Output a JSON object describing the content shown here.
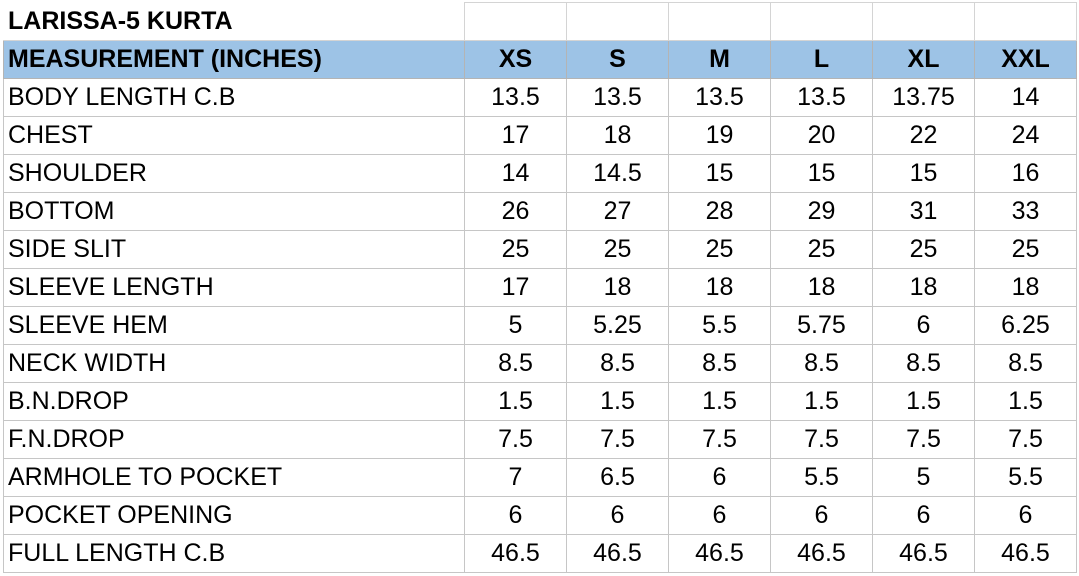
{
  "title": "LARISSA-5 KURTA",
  "header": {
    "label": "MEASUREMENT (INCHES)",
    "sizes": [
      "XS",
      "S",
      "M",
      "L",
      "XL",
      "XXL"
    ]
  },
  "rows": [
    {
      "label": "BODY LENGTH C.B",
      "values": [
        "13.5",
        "13.5",
        "13.5",
        "13.5",
        "13.75",
        "14"
      ]
    },
    {
      "label": "CHEST",
      "values": [
        "17",
        "18",
        "19",
        "20",
        "22",
        "24"
      ]
    },
    {
      "label": "SHOULDER",
      "values": [
        "14",
        "14.5",
        "15",
        "15",
        "15",
        "16"
      ]
    },
    {
      "label": "BOTTOM",
      "values": [
        "26",
        "27",
        "28",
        "29",
        "31",
        "33"
      ]
    },
    {
      "label": "SIDE SLIT",
      "values": [
        "25",
        "25",
        "25",
        "25",
        "25",
        "25"
      ]
    },
    {
      "label": "SLEEVE LENGTH",
      "values": [
        "17",
        "18",
        "18",
        "18",
        "18",
        "18"
      ]
    },
    {
      "label": "SLEEVE HEM",
      "values": [
        "5",
        "5.25",
        "5.5",
        "5.75",
        "6",
        "6.25"
      ]
    },
    {
      "label": "NECK WIDTH",
      "values": [
        "8.5",
        "8.5",
        "8.5",
        "8.5",
        "8.5",
        "8.5"
      ]
    },
    {
      "label": "B.N.DROP",
      "values": [
        "1.5",
        "1.5",
        "1.5",
        "1.5",
        "1.5",
        "1.5"
      ]
    },
    {
      "label": "F.N.DROP",
      "values": [
        "7.5",
        "7.5",
        "7.5",
        "7.5",
        "7.5",
        "7.5"
      ]
    },
    {
      "label": "ARMHOLE TO POCKET",
      "values": [
        "7",
        "6.5",
        "6",
        "5.5",
        "5",
        "5.5"
      ]
    },
    {
      "label": "POCKET OPENING",
      "values": [
        "6",
        "6",
        "6",
        "6",
        "6",
        "6"
      ]
    },
    {
      "label": "FULL LENGTH C.B",
      "values": [
        "46.5",
        "46.5",
        "46.5",
        "46.5",
        "46.5",
        "46.5"
      ]
    }
  ],
  "colors": {
    "header_fill": "#9dc3e6",
    "grid": "#c6c6c6"
  }
}
